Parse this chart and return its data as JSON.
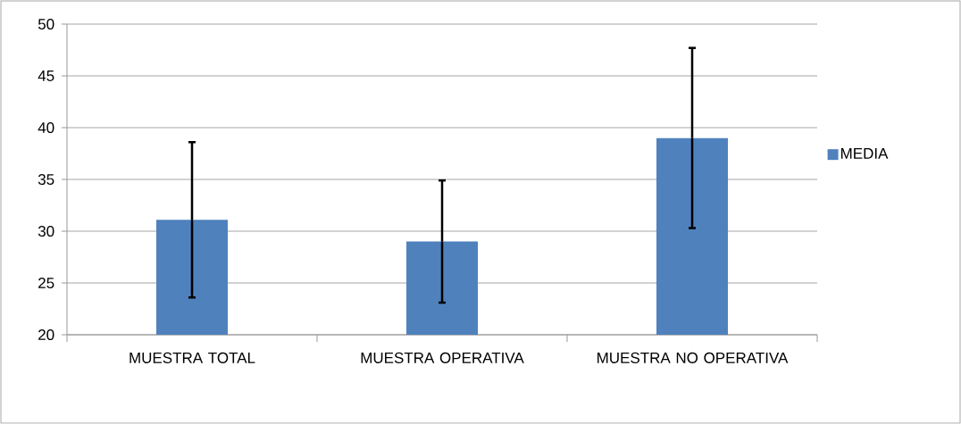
{
  "chart_data": {
    "type": "bar",
    "categories": [
      "MUESTRA TOTAL",
      "MUESTRA OPERATIVA",
      "MUESTRA NO OPERATIVA"
    ],
    "series": [
      {
        "name": "MEDIA",
        "color": "#4f81bd",
        "values": [
          31.1,
          29.0,
          39.0
        ],
        "errors": [
          7.5,
          5.9,
          8.7
        ]
      }
    ],
    "ylim": [
      20,
      50
    ],
    "yticks": [
      20,
      25,
      30,
      35,
      40,
      45,
      50
    ],
    "grid": "y",
    "legend": "right"
  }
}
